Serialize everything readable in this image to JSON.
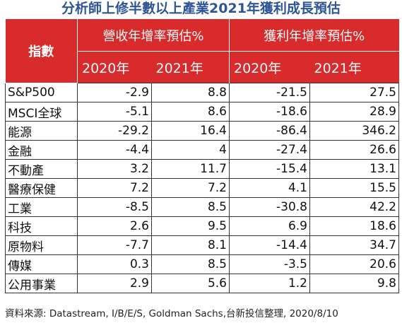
{
  "title": "分析師上修半數以上產業2021年獲利成長預估",
  "table": {
    "index_header": "指數",
    "group_headers": [
      "營收年增率預估%",
      "獲利年增率預估%"
    ],
    "year_headers": [
      "2020年",
      "2021年",
      "2020年",
      "2021年"
    ],
    "rows": [
      {
        "name": "S&P500",
        "values": [
          "-2.9",
          "8.8",
          "-21.5",
          "27.5"
        ]
      },
      {
        "name": "MSCI全球",
        "values": [
          "-5.1",
          "8.6",
          "-18.6",
          "28.9"
        ]
      },
      {
        "name": "能源",
        "values": [
          "-29.2",
          "16.4",
          "-86.4",
          "346.2"
        ]
      },
      {
        "name": "金融",
        "values": [
          "-4.4",
          "4",
          "-27.4",
          "26.6"
        ]
      },
      {
        "name": "不動產",
        "values": [
          "3.2",
          "11.7",
          "-15.4",
          "13.1"
        ]
      },
      {
        "name": "醫療保健",
        "values": [
          "7.2",
          "7.2",
          "4.1",
          "15.5"
        ]
      },
      {
        "name": "工業",
        "values": [
          "-8.5",
          "8.5",
          "-30.8",
          "42.2"
        ]
      },
      {
        "name": "科技",
        "values": [
          "2.6",
          "9.5",
          "6.9",
          "18.6"
        ]
      },
      {
        "name": "原物料",
        "values": [
          "-7.7",
          "8.1",
          "-14.4",
          "34.7"
        ]
      },
      {
        "name": "傳媒",
        "values": [
          "0.3",
          "8.5",
          "-3.5",
          "20.6"
        ]
      },
      {
        "name": "公用事業",
        "values": [
          "2.9",
          "5.6",
          "1.2",
          "9.8"
        ]
      }
    ]
  },
  "source": "資料來源: Datastream, I/B/E/S, Goldman Sachs,台新投信整理, 2020/8/10",
  "colors": {
    "title": "#2f5597",
    "header_background": "#d92b2b",
    "header_text": "#ffffff",
    "grid": "#333333"
  }
}
